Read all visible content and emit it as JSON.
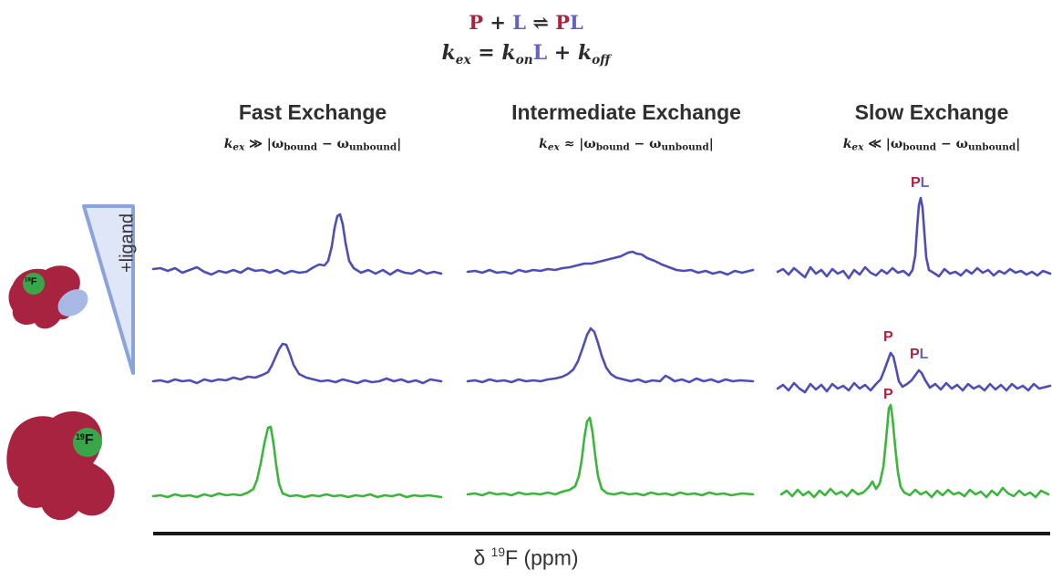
{
  "equation": {
    "line1": {
      "p": "P",
      "plus": "+",
      "l": "L",
      "arrows": "⇌",
      "pl_p": "P",
      "pl_l": "L"
    },
    "line2": {
      "k": "k",
      "ex": "ex",
      "eq": " = ",
      "kon": "on",
      "L": "L",
      "plus": " + ",
      "koff": "off"
    }
  },
  "columns": [
    {
      "title": "Fast Exchange",
      "relation": "≫",
      "bound": "bound",
      "unbound": "unbound"
    },
    {
      "title": "Intermediate Exchange",
      "relation": "≈",
      "bound": "bound",
      "unbound": "unbound"
    },
    {
      "title": "Slow Exchange",
      "relation": "≪",
      "bound": "bound",
      "unbound": "unbound"
    }
  ],
  "peak_labels": {
    "slow_top": {
      "p": "P",
      "l": "L"
    },
    "slow_mid_unbound": "P",
    "slow_mid_bound": {
      "p": "P",
      "l": "L"
    },
    "slow_bottom": "P"
  },
  "ligand_label": "+ligand",
  "fluorine_label": {
    "sup": "19",
    "symbol": "F"
  },
  "axis_label": {
    "delta": "δ ",
    "sup": "19",
    "rest": "F (ppm)"
  },
  "colors": {
    "protein": "#a8233f",
    "ligand": "#6363c2",
    "apo_trace": "#3cb53c",
    "fluorine": "#3aa64a",
    "ligand_blob": "#a9b9e6"
  }
}
